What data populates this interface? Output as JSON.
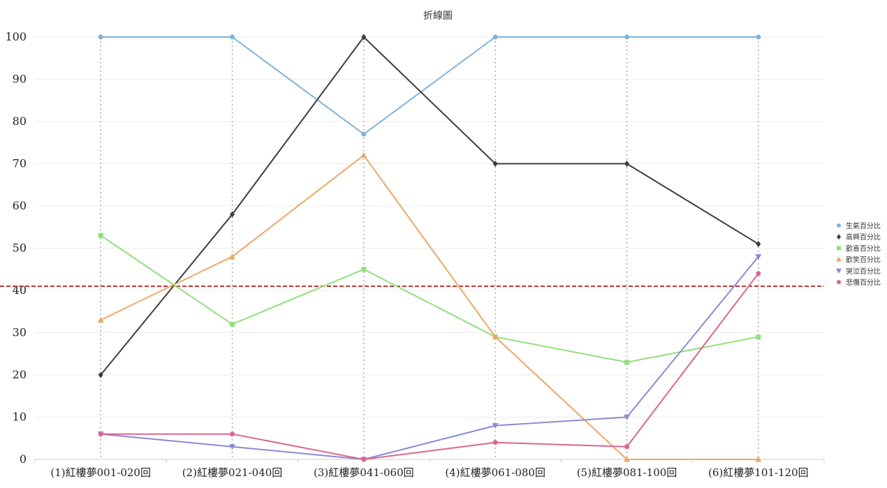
{
  "chart_data": {
    "type": "line",
    "title": "折線圖",
    "xlabel": "",
    "ylabel": "",
    "ylim": [
      0,
      100
    ],
    "yticks": [
      0,
      10,
      20,
      30,
      40,
      50,
      60,
      70,
      80,
      90,
      100
    ],
    "grid": true,
    "legend_position": "right",
    "categories": [
      "(1)紅樓夢001-020回",
      "(2)紅樓夢021-040回",
      "(3)紅樓夢041-060回",
      "(4)紅樓夢061-080回",
      "(5)紅樓夢081-100回",
      "(6)紅樓夢101-120回"
    ],
    "series": [
      {
        "name": "生氣百分比",
        "color": "#7eb4dc",
        "marker": "circle",
        "values": [
          100,
          100,
          77,
          100,
          100,
          100
        ]
      },
      {
        "name": "高興百分比",
        "color": "#3d3d3d",
        "marker": "diamond",
        "values": [
          20,
          58,
          100,
          70,
          70,
          51
        ]
      },
      {
        "name": "歡喜百分比",
        "color": "#90e07c",
        "marker": "square",
        "values": [
          53,
          32,
          45,
          29,
          23,
          29
        ]
      },
      {
        "name": "歡笑百分比",
        "color": "#efa765",
        "marker": "triangle",
        "values": [
          33,
          48,
          72,
          29,
          0,
          0
        ]
      },
      {
        "name": "哭泣百分比",
        "color": "#8a8ad6",
        "marker": "triangle-down",
        "values": [
          6,
          3,
          0,
          8,
          10,
          48
        ]
      },
      {
        "name": "悲傷百分比",
        "color": "#dc6590",
        "marker": "circle",
        "values": [
          6,
          6,
          0,
          4,
          3,
          44
        ]
      }
    ],
    "reference_line": {
      "value": 41,
      "color": "#c23531",
      "style": "dashed"
    }
  }
}
